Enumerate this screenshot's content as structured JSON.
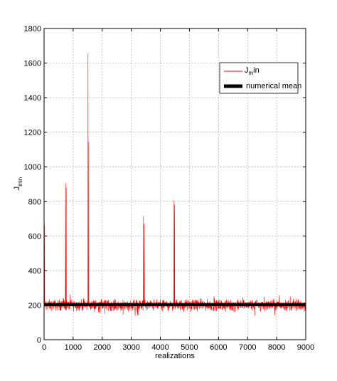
{
  "chart_data": {
    "type": "line",
    "title": "",
    "xlabel": "realizations",
    "ylabel_main": "J",
    "ylabel_sub": "min",
    "xlim": [
      0,
      9000
    ],
    "ylim": [
      0,
      1800
    ],
    "xticks": [
      0,
      1000,
      2000,
      3000,
      4000,
      5000,
      6000,
      7000,
      8000,
      9000
    ],
    "yticks": [
      0,
      200,
      400,
      600,
      800,
      1000,
      1200,
      1400,
      1600,
      1800
    ],
    "xtick_labels": [
      "0",
      "1000",
      "2000",
      "3000",
      "4000",
      "5000",
      "6000",
      "7000",
      "8000",
      "9000"
    ],
    "ytick_labels": [
      "0",
      "200",
      "400",
      "600",
      "800",
      "1000",
      "1200",
      "1400",
      "1600",
      "1800"
    ],
    "grid": true,
    "legend_position": "top-right",
    "series": [
      {
        "name": "J_min",
        "legend_main": "J",
        "legend_sub": "m",
        "legend_tail": "in",
        "color": "#ff0000",
        "baseline": 200,
        "noise_band": [
          160,
          245
        ],
        "spikes": [
          {
            "x": 10,
            "y": 665
          },
          {
            "x": 740,
            "y": 905
          },
          {
            "x": 760,
            "y": 880
          },
          {
            "x": 1510,
            "y": 1655
          },
          {
            "x": 1525,
            "y": 1145
          },
          {
            "x": 3420,
            "y": 715
          },
          {
            "x": 3445,
            "y": 670
          },
          {
            "x": 4470,
            "y": 805
          },
          {
            "x": 4485,
            "y": 780
          }
        ]
      },
      {
        "name": "numerical mean",
        "color": "#000000",
        "y": 203
      }
    ]
  }
}
